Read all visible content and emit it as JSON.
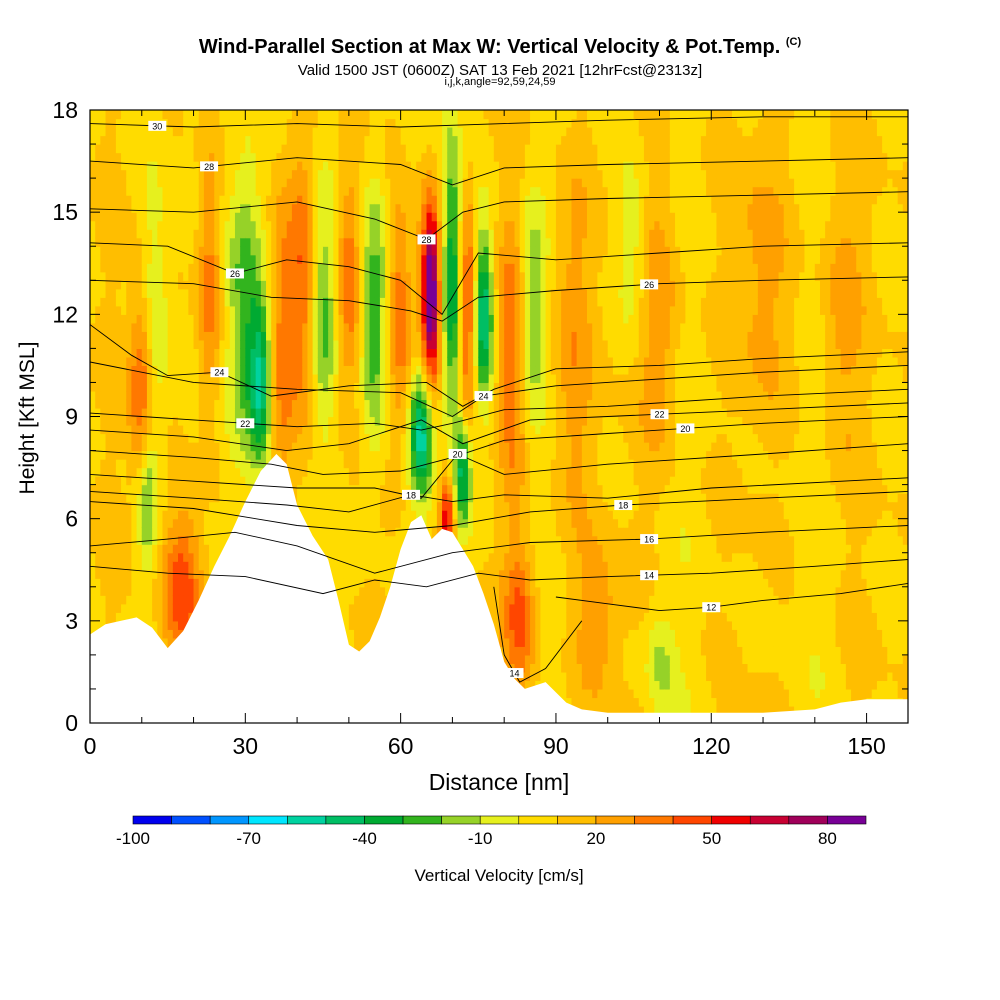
{
  "title": {
    "main": "Wind-Parallel Section at Max W: Vertical Velocity & Pot.Temp.",
    "main_tag": "(C)",
    "valid": "Valid 1500 JST (0600Z) SAT 13 Feb 2021 [12hrFcst@2313z]",
    "indices": "i,j,k,angle=92,59,24,59"
  },
  "chart_data": {
    "type": "heatmap",
    "xlabel": "Distance [nm]",
    "ylabel": "Height [Kft MSL]",
    "xlim": [
      0,
      158
    ],
    "ylim": [
      0,
      18
    ],
    "x_ticks": [
      0,
      30,
      60,
      90,
      120,
      150
    ],
    "y_ticks": [
      0,
      3,
      6,
      9,
      12,
      15,
      18
    ],
    "colorbar": {
      "label": "Vertical Velocity [cm/s]",
      "min": -100,
      "max": 90,
      "step": 10,
      "tick_values": [
        -100,
        -70,
        -40,
        -10,
        20,
        50,
        80
      ],
      "tick_labels": [
        "-100",
        "-70",
        "-40",
        "-10",
        "20",
        "50",
        "80"
      ],
      "colors": [
        "#0000ee",
        "#0050ff",
        "#0096ff",
        "#00e6ff",
        "#00d2a0",
        "#00be64",
        "#00aa32",
        "#32b41e",
        "#96d228",
        "#e6f01e",
        "#ffdc00",
        "#ffbe00",
        "#ffa000",
        "#ff7800",
        "#ff4600",
        "#f00000",
        "#c80032",
        "#a0005a",
        "#780096"
      ]
    },
    "terrain_kft": {
      "x": [
        0,
        3,
        6,
        9,
        12,
        15,
        18,
        21,
        24,
        27,
        30,
        33,
        36,
        38,
        40,
        43,
        46,
        48,
        50,
        52,
        54,
        56,
        58,
        60,
        62,
        64,
        66,
        68,
        70,
        72,
        74,
        76,
        78,
        80,
        82,
        84,
        86,
        88,
        90,
        92,
        95,
        100,
        110,
        120,
        130,
        140,
        145,
        150,
        158
      ],
      "z": [
        2.6,
        2.9,
        3.0,
        3.1,
        2.8,
        2.2,
        2.7,
        3.6,
        4.6,
        5.5,
        6.5,
        7.4,
        7.9,
        7.6,
        6.4,
        5.5,
        4.8,
        3.6,
        2.3,
        2.1,
        2.4,
        3.1,
        4.0,
        5.1,
        5.9,
        6.1,
        5.4,
        5.7,
        5.6,
        5.1,
        4.6,
        3.8,
        2.9,
        1.8,
        1.3,
        1.0,
        1.1,
        1.2,
        0.9,
        0.6,
        0.4,
        0.3,
        0.3,
        0.3,
        0.3,
        0.4,
        0.6,
        0.7,
        0.7
      ]
    },
    "w_features": [
      {
        "x": 10,
        "z": 10.0,
        "w": 40,
        "sx": 1.6,
        "sz": 2.2
      },
      {
        "x": 11,
        "z": 6.5,
        "w": -30,
        "sx": 1.4,
        "sz": 1.6
      },
      {
        "x": 18,
        "z": 4.0,
        "w": 40,
        "sx": 2.8,
        "sz": 1.6
      },
      {
        "x": 12,
        "z": 12.0,
        "w": -20,
        "sx": 2.0,
        "sz": 2.5
      },
      {
        "x": 23,
        "z": 13.0,
        "w": 30,
        "sx": 1.6,
        "sz": 3.0
      },
      {
        "x": 30,
        "z": 12.0,
        "w": -40,
        "sx": 2.5,
        "sz": 3.5
      },
      {
        "x": 33,
        "z": 10.0,
        "w": -50,
        "sx": 1.5,
        "sz": 1.5
      },
      {
        "x": 37,
        "z": 11.0,
        "w": 30,
        "sx": 1.8,
        "sz": 3.5
      },
      {
        "x": 41,
        "z": 13.0,
        "w": 30,
        "sx": 1.8,
        "sz": 3.0
      },
      {
        "x": 45,
        "z": 12.0,
        "w": -30,
        "sx": 1.6,
        "sz": 2.5
      },
      {
        "x": 50,
        "z": 13.0,
        "w": 30,
        "sx": 1.5,
        "sz": 2.5
      },
      {
        "x": 55,
        "z": 12.0,
        "w": -40,
        "sx": 1.8,
        "sz": 3.0
      },
      {
        "x": 60,
        "z": 12.0,
        "w": 30,
        "sx": 1.6,
        "sz": 2.5
      },
      {
        "x": 64,
        "z": 8.5,
        "w": -60,
        "sx": 1.5,
        "sz": 1.3
      },
      {
        "x": 65,
        "z": 13.0,
        "w": 30,
        "sx": 1.4,
        "sz": 2.0
      },
      {
        "x": 66,
        "z": 12.5,
        "w": 70,
        "sx": 1.1,
        "sz": 1.8
      },
      {
        "x": 69,
        "z": 6.0,
        "w": 50,
        "sx": 1.0,
        "sz": 1.0
      },
      {
        "x": 70,
        "z": 13.0,
        "w": -50,
        "sx": 1.3,
        "sz": 3.0
      },
      {
        "x": 72,
        "z": 7.3,
        "w": -50,
        "sx": 1.2,
        "sz": 1.2
      },
      {
        "x": 73,
        "z": 12.0,
        "w": 40,
        "sx": 1.3,
        "sz": 2.5
      },
      {
        "x": 76,
        "z": 12.0,
        "w": -60,
        "sx": 1.3,
        "sz": 1.8
      },
      {
        "x": 82,
        "z": 11.0,
        "w": 30,
        "sx": 2.0,
        "sz": 3.0
      },
      {
        "x": 85,
        "z": 12.0,
        "w": -30,
        "sx": 2.0,
        "sz": 2.5
      },
      {
        "x": 83,
        "z": 3.0,
        "w": 30,
        "sx": 2.2,
        "sz": 1.5
      },
      {
        "x": 93,
        "z": 11.0,
        "w": 20,
        "sx": 3.0,
        "sz": 4.0
      },
      {
        "x": 105,
        "z": 14.0,
        "w": -20,
        "sx": 2.0,
        "sz": 2.0
      },
      {
        "x": 110,
        "z": 12.0,
        "w": 20,
        "sx": 3.0,
        "sz": 3.0
      },
      {
        "x": 98,
        "z": 3.0,
        "w": 20,
        "sx": 3.0,
        "sz": 1.5
      },
      {
        "x": 110,
        "z": 1.8,
        "w": -20,
        "sx": 2.0,
        "sz": 1.2
      },
      {
        "x": 130,
        "z": 13.0,
        "w": 15,
        "sx": 4.0,
        "sz": 3.0
      },
      {
        "x": 145,
        "z": 12.0,
        "w": 15,
        "sx": 3.0,
        "sz": 3.0
      }
    ],
    "theta_contours": [
      {
        "label": "30",
        "x": [
          0,
          20,
          40,
          60,
          80,
          100,
          130,
          158
        ],
        "z": [
          17.6,
          17.5,
          17.6,
          17.5,
          17.6,
          17.7,
          17.8,
          17.8
        ],
        "label_x": 13
      },
      {
        "label": "28",
        "x": [
          0,
          20,
          40,
          60,
          70,
          80,
          100,
          130,
          158
        ],
        "z": [
          16.5,
          16.3,
          16.6,
          16.4,
          15.8,
          16.3,
          16.4,
          16.5,
          16.6
        ],
        "label_x": 23
      },
      {
        "label": "28",
        "x": [
          0,
          20,
          40,
          55,
          65,
          72,
          80,
          100,
          130,
          158
        ],
        "z": [
          15.1,
          15.0,
          15.3,
          14.8,
          14.2,
          15.0,
          15.3,
          15.4,
          15.5,
          15.6
        ],
        "label_x": 65
      },
      {
        "label": "26",
        "x": [
          0,
          15,
          28,
          38,
          50,
          60,
          68,
          75,
          90,
          110,
          130,
          158
        ],
        "z": [
          14.1,
          14.0,
          13.2,
          13.6,
          13.4,
          13.0,
          12.0,
          13.8,
          13.6,
          13.8,
          14.0,
          14.1
        ],
        "label_x": 28
      },
      {
        "label": "26",
        "x": [
          0,
          20,
          35,
          50,
          62,
          68,
          75,
          90,
          110,
          130,
          158
        ],
        "z": [
          13.0,
          12.9,
          12.5,
          12.4,
          12.1,
          11.8,
          12.5,
          12.7,
          12.9,
          13.0,
          13.1
        ],
        "label_x": 108
      },
      {
        "label": "24",
        "x": [
          0,
          8,
          15,
          25,
          35,
          50,
          65,
          72,
          78,
          90,
          110,
          130,
          158
        ],
        "z": [
          11.7,
          10.8,
          10.2,
          10.3,
          9.6,
          9.9,
          10.0,
          9.3,
          9.8,
          10.4,
          10.5,
          10.7,
          10.9
        ],
        "label_x": 25
      },
      {
        "label": "24",
        "x": [
          0,
          20,
          40,
          60,
          70,
          76,
          90,
          110,
          130,
          158
        ],
        "z": [
          10.6,
          10.0,
          9.8,
          9.7,
          9.0,
          9.6,
          9.9,
          10.1,
          10.3,
          10.5
        ],
        "label_x": 76
      },
      {
        "label": "22",
        "x": [
          0,
          10,
          20,
          30,
          40,
          55,
          64,
          70,
          80,
          100,
          130,
          158
        ],
        "z": [
          9.1,
          9.0,
          8.9,
          8.8,
          8.7,
          8.8,
          8.6,
          8.8,
          9.2,
          9.3,
          9.6,
          9.8
        ],
        "label_x": 30
      },
      {
        "label": "22",
        "x": [
          0,
          20,
          38,
          50,
          64,
          72,
          85,
          100,
          130,
          158
        ],
        "z": [
          8.6,
          8.4,
          8.0,
          8.2,
          8.9,
          8.2,
          8.9,
          9.0,
          9.2,
          9.4
        ],
        "label_x": 110
      },
      {
        "label": "20",
        "x": [
          0,
          20,
          35,
          45,
          60,
          70,
          80,
          100,
          130,
          158
        ],
        "z": [
          8.0,
          7.8,
          7.6,
          7.3,
          7.4,
          7.8,
          8.3,
          8.5,
          8.8,
          9.0
        ],
        "label_x": 115
      },
      {
        "label": "20",
        "x": [
          0,
          20,
          40,
          55,
          64,
          71,
          80,
          100,
          130,
          158
        ],
        "z": [
          7.3,
          7.1,
          6.9,
          6.9,
          6.6,
          7.9,
          7.3,
          7.6,
          7.9,
          8.2
        ],
        "label_x": 71
      },
      {
        "label": "18",
        "x": [
          0,
          20,
          38,
          50,
          62,
          70,
          80,
          100,
          120,
          158
        ],
        "z": [
          6.8,
          6.6,
          6.4,
          6.2,
          6.7,
          6.5,
          6.7,
          6.6,
          6.9,
          7.2
        ],
        "label_x": 62
      },
      {
        "label": "18",
        "x": [
          0,
          20,
          40,
          55,
          70,
          85,
          103,
          130,
          158
        ],
        "z": [
          6.5,
          6.3,
          5.8,
          5.6,
          5.8,
          6.2,
          6.4,
          6.6,
          6.8
        ],
        "label_x": 103
      },
      {
        "label": "16",
        "x": [
          0,
          15,
          28,
          40,
          55,
          70,
          85,
          108,
          130,
          158
        ],
        "z": [
          5.2,
          5.4,
          5.6,
          5.2,
          4.4,
          5.0,
          5.3,
          5.4,
          5.6,
          5.8
        ],
        "label_x": 108
      },
      {
        "label": "14",
        "x": [
          0,
          15,
          30,
          45,
          55,
          65,
          75,
          85,
          100,
          120,
          140,
          158
        ],
        "z": [
          4.6,
          4.4,
          4.3,
          3.8,
          4.2,
          4.0,
          4.4,
          4.2,
          4.3,
          4.4,
          4.6,
          4.8
        ],
        "label_x": 108
      },
      {
        "label": "14",
        "x": [
          78,
          80,
          83,
          88,
          95
        ],
        "z": [
          4.0,
          2.0,
          1.2,
          1.6,
          3.0
        ],
        "label_x": 82
      },
      {
        "label": "12",
        "x": [
          90,
          100,
          110,
          120,
          130,
          145,
          158
        ],
        "z": [
          3.7,
          3.5,
          3.3,
          3.4,
          3.6,
          3.8,
          4.1
        ],
        "label_x": 120
      }
    ]
  }
}
